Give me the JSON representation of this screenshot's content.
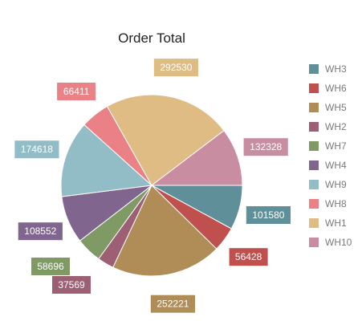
{
  "chart_data": {
    "type": "pie",
    "title": "Order Total",
    "legend_position": "right",
    "categories": [
      "WH3",
      "WH6",
      "WH5",
      "WH2",
      "WH7",
      "WH4",
      "WH9",
      "WH8",
      "WH1",
      "WH10"
    ],
    "values": [
      101580,
      56428,
      252221,
      37569,
      58696,
      108552,
      174618,
      66411,
      292530,
      132328
    ],
    "colors": [
      "#5f8f98",
      "#c0504d",
      "#b08d57",
      "#9c5f74",
      "#7f9a65",
      "#80658f",
      "#93bdc6",
      "#e98187",
      "#e0bc85",
      "#c98da2"
    ],
    "legend": [
      "WH3",
      "WH6",
      "WH5",
      "WH2",
      "WH7",
      "WH4",
      "WH9",
      "WH8",
      "WH1",
      "WH10"
    ]
  }
}
